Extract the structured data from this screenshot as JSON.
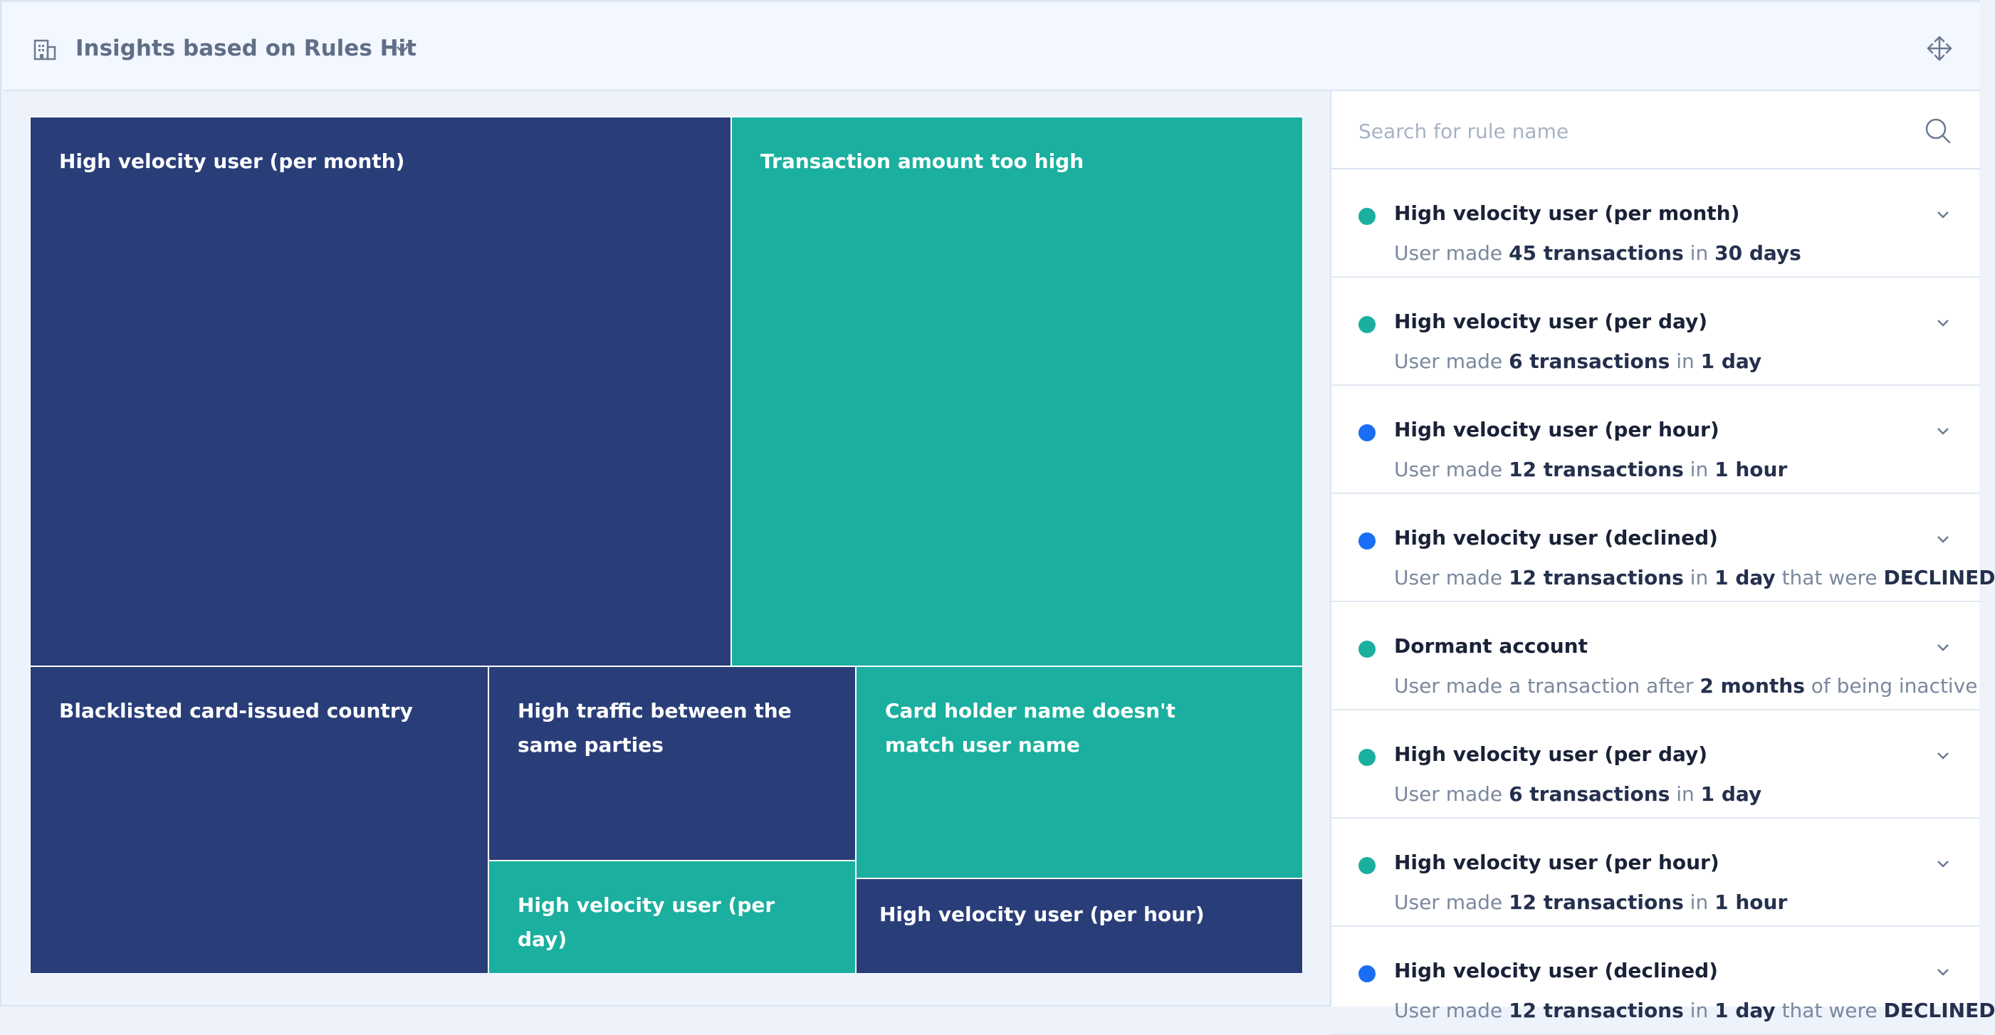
{
  "header": {
    "title": "Insights based on Rules Hit",
    "icons": {
      "widget": "building-chart-icon",
      "dropdown": "chevron-down-icon",
      "move": "move-arrows-icon"
    }
  },
  "colors": {
    "navy": "#293e79",
    "teal": "#1aaf9f",
    "blue_dot": "#1a6ef5"
  },
  "treemap": {
    "tiles": [
      {
        "label": "High velocity user (per month)",
        "color": "navy"
      },
      {
        "label": "Transaction amount too high",
        "color": "teal"
      },
      {
        "label": "Blacklisted card-issued country",
        "color": "navy"
      },
      {
        "label": "High traffic between the same parties",
        "color": "navy"
      },
      {
        "label": "Card holder name doesn't match user name",
        "color": "teal"
      },
      {
        "label": "High velocity user (per day)",
        "color": "teal"
      },
      {
        "label": "High velocity user (per hour)",
        "color": "navy"
      }
    ]
  },
  "search": {
    "placeholder": "Search for rule name"
  },
  "rules": [
    {
      "name": "High velocity user (per month)",
      "dot": "teal",
      "desc": [
        {
          "t": "User made "
        },
        {
          "t": "45 transactions",
          "b": true
        },
        {
          "t": " in "
        },
        {
          "t": "30 days",
          "b": true
        }
      ]
    },
    {
      "name": "High velocity user (per day)",
      "dot": "teal",
      "desc": [
        {
          "t": "User made "
        },
        {
          "t": "6 transactions",
          "b": true
        },
        {
          "t": " in "
        },
        {
          "t": "1 day",
          "b": true
        }
      ]
    },
    {
      "name": "High velocity user (per hour)",
      "dot": "blue",
      "desc": [
        {
          "t": "User made "
        },
        {
          "t": "12 transactions",
          "b": true
        },
        {
          "t": " in "
        },
        {
          "t": "1 hour",
          "b": true
        }
      ]
    },
    {
      "name": "High velocity user (declined)",
      "dot": "blue",
      "desc": [
        {
          "t": "User made "
        },
        {
          "t": "12 transactions",
          "b": true
        },
        {
          "t": " in "
        },
        {
          "t": "1 day",
          "b": true
        },
        {
          "t": " that were "
        },
        {
          "t": "DECLINED",
          "b": true
        }
      ]
    },
    {
      "name": "Dormant account",
      "dot": "teal",
      "desc": [
        {
          "t": "User made a transaction after "
        },
        {
          "t": "2 months",
          "b": true
        },
        {
          "t": " of being inactive"
        }
      ]
    },
    {
      "name": "High velocity user (per day)",
      "dot": "teal",
      "desc": [
        {
          "t": "User made "
        },
        {
          "t": "6 transactions",
          "b": true
        },
        {
          "t": " in "
        },
        {
          "t": "1 day",
          "b": true
        }
      ]
    },
    {
      "name": "High velocity user (per hour)",
      "dot": "teal",
      "desc": [
        {
          "t": "User made "
        },
        {
          "t": "12 transactions",
          "b": true
        },
        {
          "t": " in "
        },
        {
          "t": "1 hour",
          "b": true
        }
      ]
    },
    {
      "name": "High velocity user (declined)",
      "dot": "blue",
      "desc": [
        {
          "t": "User made "
        },
        {
          "t": "12 transactions",
          "b": true
        },
        {
          "t": " in "
        },
        {
          "t": "1 day",
          "b": true
        },
        {
          "t": " that were "
        },
        {
          "t": "DECLINED",
          "b": true
        }
      ]
    }
  ]
}
